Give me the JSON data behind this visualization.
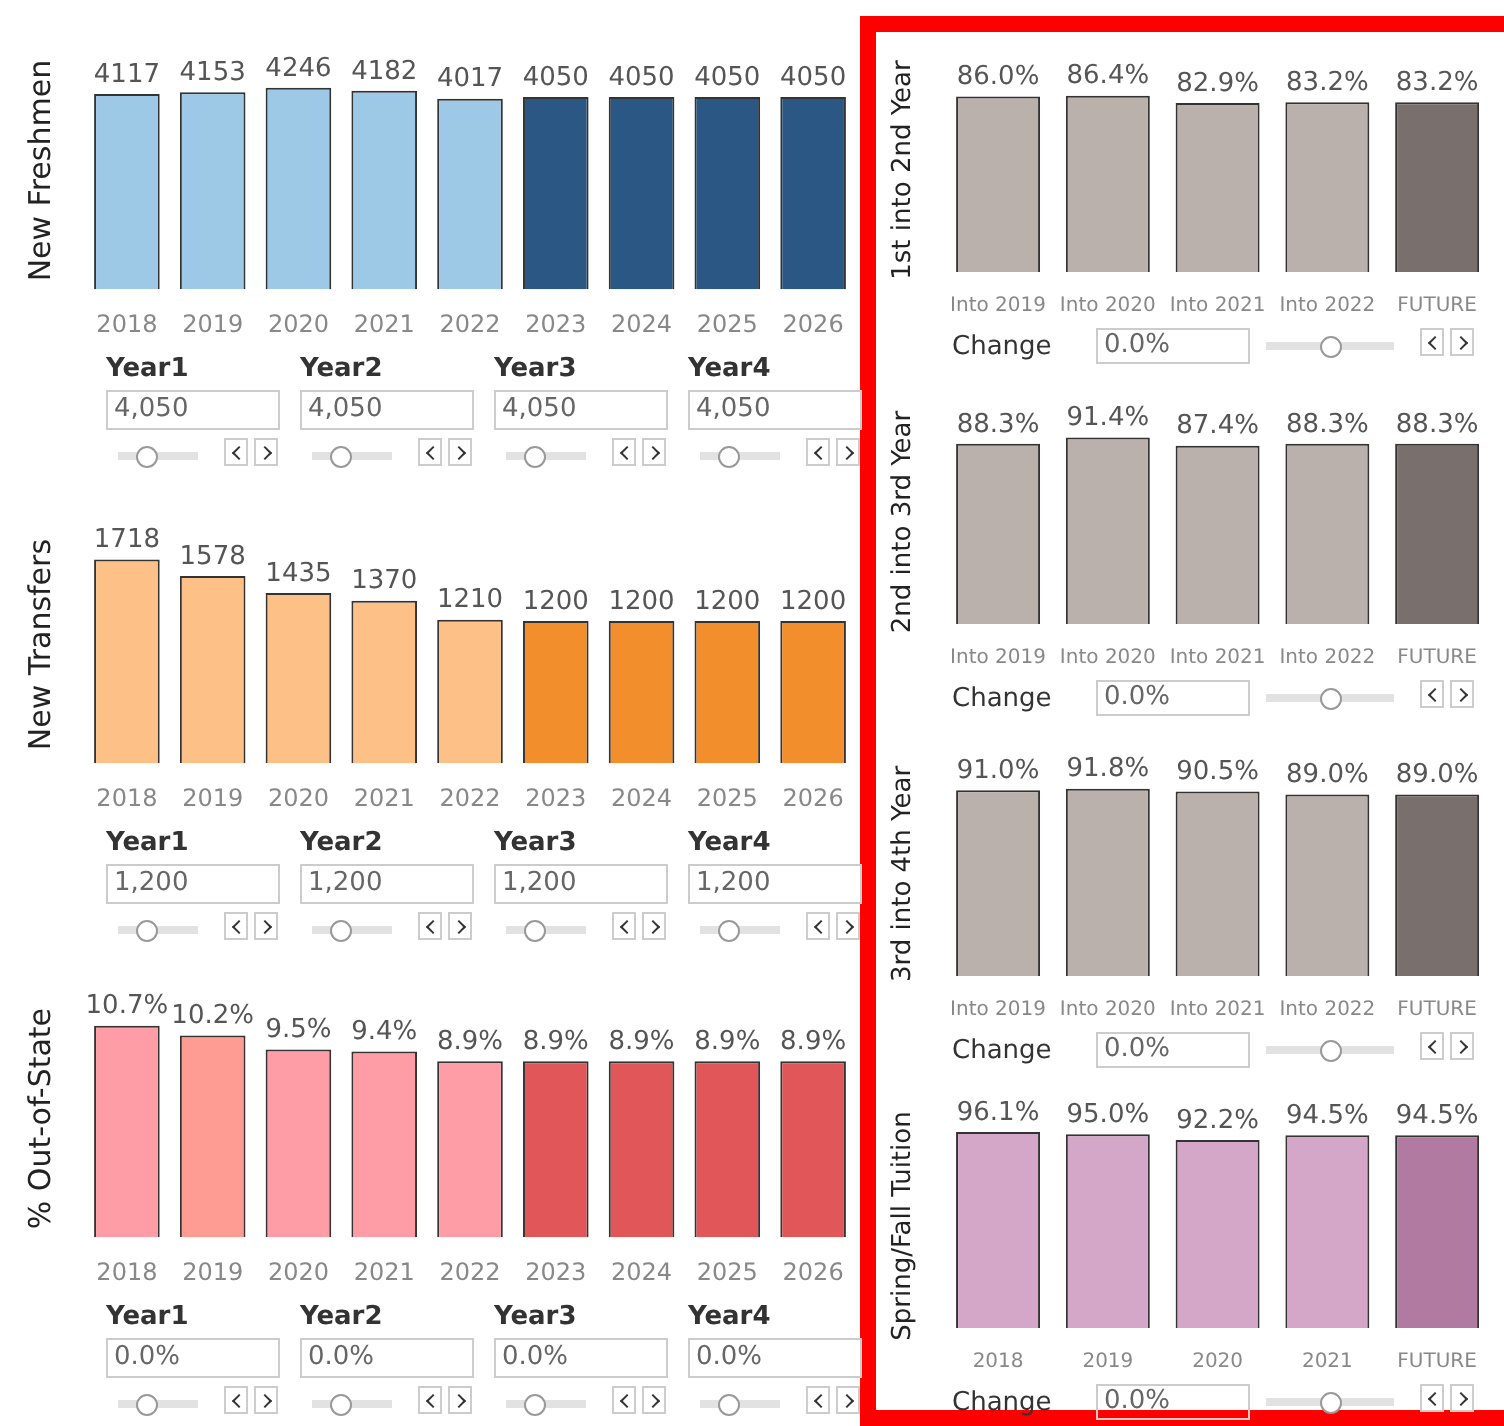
{
  "chart_data": [
    {
      "type": "bar",
      "ylabel": "New Freshmen",
      "categories": [
        "2018",
        "2019",
        "2020",
        "2021",
        "2022",
        "2023",
        "2024",
        "2025",
        "2026"
      ],
      "values": [
        4117,
        4153,
        4246,
        4182,
        4017,
        4050,
        4050,
        4050,
        4050
      ],
      "colors": [
        "#9dc8e6",
        "#9dc8e6",
        "#9dc8e6",
        "#9dc8e6",
        "#9dc8e6",
        "#2a5783",
        "#2a5783",
        "#2a5783",
        "#2a5783"
      ],
      "data_labels": true,
      "annotations": [
        "Year1",
        "4,050",
        "Year2",
        "4,050",
        "Year3",
        "4,050",
        "Year4",
        "4,050"
      ]
    },
    {
      "type": "bar",
      "ylabel": "New Transfers",
      "categories": [
        "2018",
        "2019",
        "2020",
        "2021",
        "2022",
        "2023",
        "2024",
        "2025",
        "2026"
      ],
      "values": [
        1718,
        1578,
        1435,
        1370,
        1210,
        1200,
        1200,
        1200,
        1200
      ],
      "colors": [
        "#fdc086",
        "#fdc086",
        "#fdc086",
        "#fdc086",
        "#fdc086",
        "#f28e2b",
        "#f28e2b",
        "#f28e2b",
        "#f28e2b"
      ],
      "data_labels": true,
      "annotations": [
        "Year1",
        "1,200",
        "Year2",
        "1,200",
        "Year3",
        "1,200",
        "Year4",
        "1,200"
      ]
    },
    {
      "type": "bar",
      "ylabel": "% Out-of-State",
      "categories": [
        "2018",
        "2019",
        "2020",
        "2021",
        "2022",
        "2023",
        "2024",
        "2025",
        "2026"
      ],
      "values": [
        10.7,
        10.2,
        9.5,
        9.4,
        8.9,
        8.9,
        8.9,
        8.9,
        8.9
      ],
      "colors": [
        "#ff9da7",
        "#fe9c94",
        "#ff9da7",
        "#ff9da7",
        "#ff9da7",
        "#e15759",
        "#e15759",
        "#e15759",
        "#e15759"
      ],
      "value_labels": [
        "10.7%",
        "10.2%",
        "9.5%",
        "9.4%",
        "8.9%",
        "8.9%",
        "8.9%",
        "8.9%",
        "8.9%"
      ],
      "annotations": [
        "Year1",
        "0.0%",
        "Year2",
        "0.0%",
        "Year3",
        "0.0%",
        "Year4",
        "0.0%"
      ]
    },
    {
      "type": "bar",
      "ylabel": "1st into 2nd Year",
      "categories": [
        "Into 2019",
        "Into 2020",
        "Into 2021",
        "Into 2022",
        "FUTURE"
      ],
      "values": [
        86.0,
        86.4,
        82.9,
        83.2,
        83.2
      ],
      "colors": [
        "#bab0ac",
        "#bab0ac",
        "#bab0ac",
        "#bab0ac",
        "#79706e"
      ],
      "value_labels": [
        "86.0%",
        "86.4%",
        "82.9%",
        "83.2%",
        "83.2%"
      ],
      "annotations": [
        "Change",
        "0.0%"
      ]
    },
    {
      "type": "bar",
      "ylabel": "2nd into 3rd Year",
      "categories": [
        "Into 2019",
        "Into 2020",
        "Into 2021",
        "Into 2022",
        "FUTURE"
      ],
      "values": [
        88.3,
        91.4,
        87.4,
        88.3,
        88.3
      ],
      "colors": [
        "#bab0ac",
        "#bab0ac",
        "#bab0ac",
        "#bab0ac",
        "#79706e"
      ],
      "value_labels": [
        "88.3%",
        "91.4%",
        "87.4%",
        "88.3%",
        "88.3%"
      ],
      "annotations": [
        "Change",
        "0.0%"
      ]
    },
    {
      "type": "bar",
      "ylabel": "3rd into 4th Year",
      "categories": [
        "Into 2019",
        "Into 2020",
        "Into 2021",
        "Into 2022",
        "FUTURE"
      ],
      "values": [
        91.0,
        91.8,
        90.5,
        89.0,
        89.0
      ],
      "colors": [
        "#bab0ac",
        "#bab0ac",
        "#bab0ac",
        "#bab0ac",
        "#79706e"
      ],
      "value_labels": [
        "91.0%",
        "91.8%",
        "90.5%",
        "89.0%",
        "89.0%"
      ],
      "annotations": [
        "Change",
        "0.0%"
      ]
    },
    {
      "type": "bar",
      "ylabel": "Spring/Fall Tuition",
      "categories": [
        "2018",
        "2019",
        "2020",
        "2021",
        "FUTURE"
      ],
      "values": [
        96.1,
        95.0,
        92.2,
        94.5,
        94.5
      ],
      "colors": [
        "#d4a6c8",
        "#d4a6c8",
        "#d4a6c8",
        "#d4a6c8",
        "#b07aa1"
      ],
      "value_labels": [
        "96.1%",
        "95.0%",
        "92.2%",
        "94.5%",
        "94.5%"
      ],
      "annotations": [
        "Change",
        "0.0%"
      ]
    }
  ]
}
